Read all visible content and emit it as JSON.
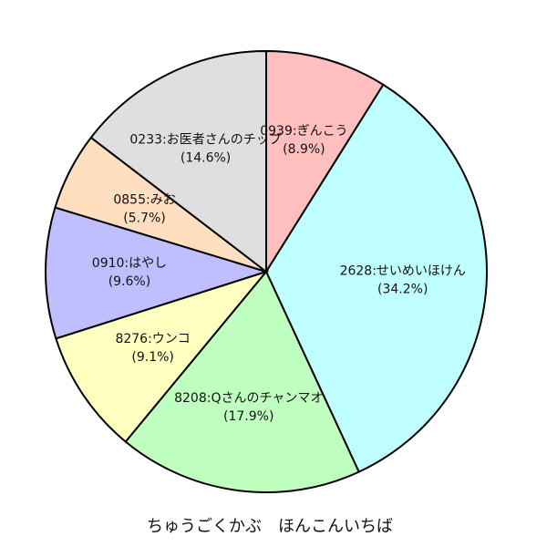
{
  "chart_data": {
    "type": "pie",
    "title": "ちゅうごくかぶ　ほんこんいちば",
    "categories": [
      "0939:ぎんこう",
      "2628:せいめいほけん",
      "8208:Qさんのチャンマオ",
      "8276:ウンコ",
      "0910:はやし",
      "0855:みお",
      "0233:お医者さんのチップ"
    ],
    "values": [
      8.9,
      34.2,
      17.9,
      9.1,
      9.6,
      5.7,
      14.6
    ],
    "value_labels": [
      "(8.9%)",
      "(34.2%)",
      "(17.9%)",
      "(9.1%)",
      "(9.6%)",
      "(5.7%)",
      "(14.6%)"
    ],
    "colors": [
      "#ffbfbf",
      "#bfffff",
      "#bfffbf",
      "#ffffbf",
      "#bfbfff",
      "#ffdfbf",
      "#dfdfdf"
    ]
  }
}
